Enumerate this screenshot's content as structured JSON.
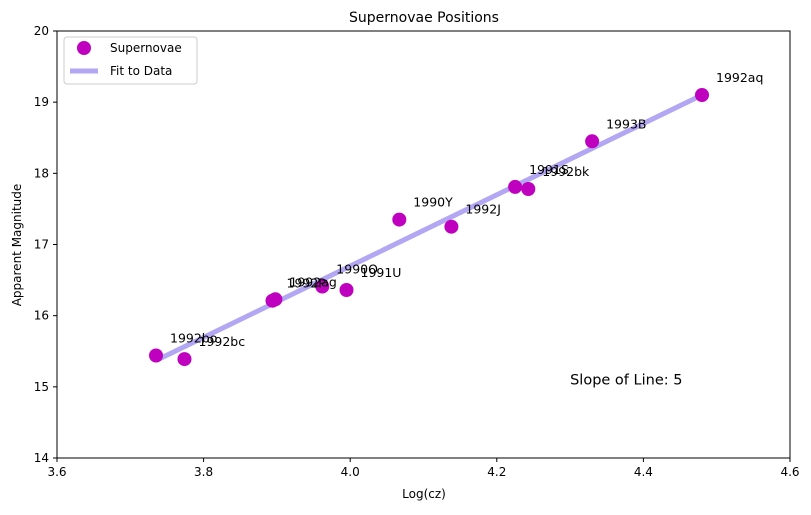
{
  "chart_data": {
    "type": "scatter",
    "title": "Supernovae Positions",
    "xlabel": "Log(cz)",
    "ylabel": "Apparent Magnitude",
    "xlim": [
      3.6,
      4.6
    ],
    "ylim": [
      14,
      20
    ],
    "xticks": [
      3.6,
      3.8,
      4.0,
      4.2,
      4.4,
      4.6
    ],
    "xtick_labels": [
      "3.6",
      "3.8",
      "4.0",
      "4.2",
      "4.4",
      "4.6"
    ],
    "yticks": [
      14,
      15,
      16,
      17,
      18,
      19,
      20
    ],
    "ytick_labels": [
      "14",
      "15",
      "16",
      "17",
      "18",
      "19",
      "20"
    ],
    "grid": false,
    "legend_position": "top-left",
    "series": [
      {
        "name": "Supernovae",
        "kind": "points",
        "color": "#bf00bf",
        "points": [
          {
            "label": "1992bo",
            "x": 3.735,
            "y": 15.44
          },
          {
            "label": "1992bc",
            "x": 3.774,
            "y": 15.39
          },
          {
            "label": "1992P",
            "x": 3.894,
            "y": 16.21
          },
          {
            "label": "1992ag",
            "x": 3.898,
            "y": 16.23
          },
          {
            "label": "1990O",
            "x": 3.962,
            "y": 16.41
          },
          {
            "label": "1991U",
            "x": 3.995,
            "y": 16.36
          },
          {
            "label": "1990Y",
            "x": 4.067,
            "y": 17.35
          },
          {
            "label": "1992J",
            "x": 4.138,
            "y": 17.25
          },
          {
            "label": "1991S",
            "x": 4.225,
            "y": 17.81
          },
          {
            "label": "1992bk",
            "x": 4.243,
            "y": 17.78
          },
          {
            "label": "1993B",
            "x": 4.33,
            "y": 18.45
          },
          {
            "label": "1992aq",
            "x": 4.48,
            "y": 19.1
          }
        ]
      },
      {
        "name": "Fit to Data",
        "kind": "line",
        "color": "#b3a6f2",
        "x": [
          3.735,
          4.48
        ],
        "y": [
          15.37,
          19.1
        ]
      }
    ],
    "annotations": [
      {
        "text": "Slope of Line: 5",
        "x": 4.3,
        "y": 15.1
      }
    ]
  }
}
